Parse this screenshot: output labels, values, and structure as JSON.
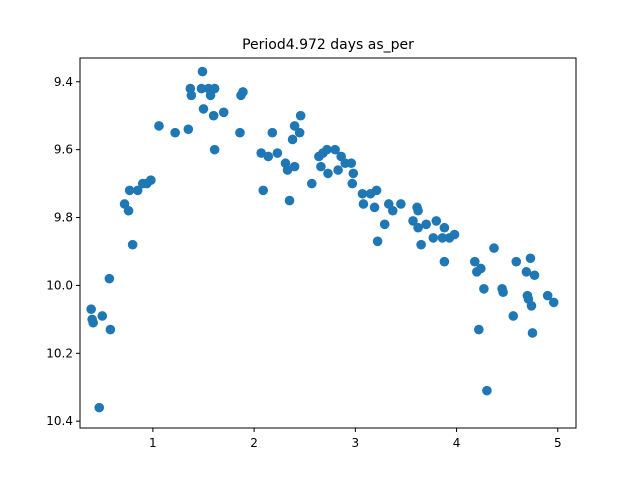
{
  "chart_data": {
    "type": "scatter",
    "title": "Period4.972 days as_per",
    "xlabel": "",
    "ylabel": "",
    "xlim": [
      0.28,
      5.18
    ],
    "ylim": [
      10.42,
      9.33
    ],
    "y_inverted": true,
    "grid": false,
    "marker_color": "#1f77b4",
    "x_ticks": [
      1,
      2,
      3,
      4,
      5
    ],
    "x_tick_labels": [
      "1",
      "2",
      "3",
      "4",
      "5"
    ],
    "y_ticks": [
      9.4,
      9.6,
      9.8,
      10.0,
      10.2,
      10.4
    ],
    "y_tick_labels": [
      "9.4",
      "9.6",
      "9.8",
      "10.0",
      "10.2",
      "10.4"
    ],
    "series": [
      {
        "points": [
          [
            0.39,
            10.07
          ],
          [
            0.4,
            10.1
          ],
          [
            0.41,
            10.11
          ],
          [
            0.47,
            10.36
          ],
          [
            0.5,
            10.09
          ],
          [
            0.57,
            9.98
          ],
          [
            0.58,
            10.13
          ],
          [
            0.72,
            9.76
          ],
          [
            0.76,
            9.78
          ],
          [
            0.77,
            9.72
          ],
          [
            0.8,
            9.88
          ],
          [
            0.85,
            9.72
          ],
          [
            0.9,
            9.7
          ],
          [
            0.94,
            9.7
          ],
          [
            0.98,
            9.69
          ],
          [
            1.06,
            9.53
          ],
          [
            1.22,
            9.55
          ],
          [
            1.35,
            9.54
          ],
          [
            1.37,
            9.42
          ],
          [
            1.38,
            9.44
          ],
          [
            1.48,
            9.42
          ],
          [
            1.49,
            9.37
          ],
          [
            1.5,
            9.48
          ],
          [
            1.55,
            9.42
          ],
          [
            1.57,
            9.44
          ],
          [
            1.6,
            9.5
          ],
          [
            1.61,
            9.42
          ],
          [
            1.61,
            9.6
          ],
          [
            1.7,
            9.49
          ],
          [
            1.86,
            9.55
          ],
          [
            1.87,
            9.44
          ],
          [
            1.89,
            9.43
          ],
          [
            2.07,
            9.61
          ],
          [
            2.09,
            9.72
          ],
          [
            2.14,
            9.62
          ],
          [
            2.18,
            9.55
          ],
          [
            2.23,
            9.61
          ],
          [
            2.31,
            9.64
          ],
          [
            2.33,
            9.66
          ],
          [
            2.35,
            9.75
          ],
          [
            2.38,
            9.57
          ],
          [
            2.4,
            9.53
          ],
          [
            2.4,
            9.65
          ],
          [
            2.45,
            9.55
          ],
          [
            2.46,
            9.5
          ],
          [
            2.57,
            9.7
          ],
          [
            2.64,
            9.62
          ],
          [
            2.66,
            9.65
          ],
          [
            2.68,
            9.61
          ],
          [
            2.72,
            9.6
          ],
          [
            2.73,
            9.67
          ],
          [
            2.8,
            9.6
          ],
          [
            2.83,
            9.66
          ],
          [
            2.86,
            9.62
          ],
          [
            2.9,
            9.64
          ],
          [
            2.96,
            9.64
          ],
          [
            2.97,
            9.7
          ],
          [
            2.98,
            9.67
          ],
          [
            3.07,
            9.73
          ],
          [
            3.08,
            9.76
          ],
          [
            3.15,
            9.73
          ],
          [
            3.19,
            9.77
          ],
          [
            3.21,
            9.72
          ],
          [
            3.22,
            9.87
          ],
          [
            3.29,
            9.82
          ],
          [
            3.33,
            9.76
          ],
          [
            3.37,
            9.78
          ],
          [
            3.45,
            9.76
          ],
          [
            3.57,
            9.81
          ],
          [
            3.61,
            9.77
          ],
          [
            3.62,
            9.78
          ],
          [
            3.62,
            9.83
          ],
          [
            3.65,
            9.88
          ],
          [
            3.7,
            9.82
          ],
          [
            3.77,
            9.86
          ],
          [
            3.8,
            9.81
          ],
          [
            3.86,
            9.86
          ],
          [
            3.88,
            9.83
          ],
          [
            3.88,
            9.93
          ],
          [
            3.93,
            9.86
          ],
          [
            3.98,
            9.85
          ],
          [
            4.18,
            9.93
          ],
          [
            4.2,
            9.96
          ],
          [
            4.22,
            10.13
          ],
          [
            4.24,
            9.95
          ],
          [
            4.27,
            10.01
          ],
          [
            4.3,
            10.31
          ],
          [
            4.37,
            9.89
          ],
          [
            4.45,
            10.01
          ],
          [
            4.46,
            10.02
          ],
          [
            4.56,
            10.09
          ],
          [
            4.59,
            9.93
          ],
          [
            4.69,
            9.96
          ],
          [
            4.7,
            10.03
          ],
          [
            4.71,
            10.04
          ],
          [
            4.73,
            9.92
          ],
          [
            4.74,
            10.06
          ],
          [
            4.75,
            10.14
          ],
          [
            4.77,
            9.97
          ],
          [
            4.9,
            10.03
          ],
          [
            4.96,
            10.05
          ]
        ]
      }
    ]
  }
}
